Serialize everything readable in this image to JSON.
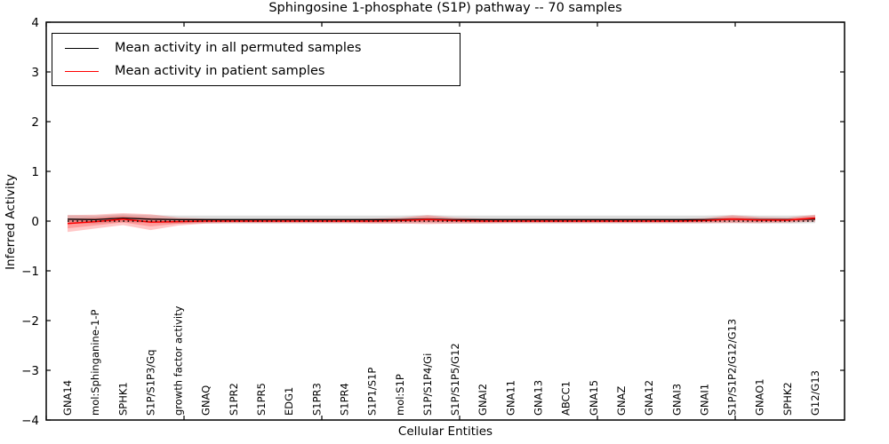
{
  "chart_data": {
    "type": "line",
    "title": "Sphingosine 1-phosphate (S1P) pathway -- 70 samples",
    "xlabel": "Cellular Entities",
    "ylabel": "Inferred Activity",
    "ylim": [
      -4,
      4
    ],
    "yticks": [
      "4",
      "3",
      "2",
      "1",
      "0",
      "−1",
      "−2",
      "−3",
      "−4"
    ],
    "ytick_values": [
      4,
      3,
      2,
      1,
      0,
      -1,
      -2,
      -3,
      -4
    ],
    "grid": false,
    "legend_position": "upper-left",
    "legend": [
      {
        "label": "Mean activity in all permuted samples",
        "color": "#000000"
      },
      {
        "label": "Mean activity in patient samples",
        "color": "#ff0000"
      }
    ],
    "categories": [
      "GNA14",
      "mol:Sphinganine-1-P",
      "SPHK1",
      "S1P/S1P3/Gq",
      "growth factor activity",
      "GNAQ",
      "S1PR2",
      "S1PR5",
      "EDG1",
      "S1PR3",
      "S1PR4",
      "S1P1/S1P",
      "mol:S1P",
      "S1P/S1P4/Gi",
      "S1P/S1P5/G12",
      "GNAI2",
      "GNA11",
      "GNA13",
      "ABCC1",
      "GNA15",
      "GNAZ",
      "GNA12",
      "GNAI3",
      "GNAI1",
      "S1P/S1P2/G12/G13",
      "GNAO1",
      "SPHK2",
      "G12/G13"
    ],
    "series": [
      {
        "name": "Mean activity in all permuted samples",
        "color": "#000000",
        "style": "solid",
        "width": 1.3,
        "values": [
          0.04,
          0.03,
          0.06,
          0.04,
          0.03,
          0.03,
          0.03,
          0.03,
          0.03,
          0.03,
          0.03,
          0.03,
          0.03,
          0.04,
          0.03,
          0.03,
          0.03,
          0.03,
          0.03,
          0.03,
          0.03,
          0.03,
          0.03,
          0.03,
          0.04,
          0.03,
          0.03,
          0.04
        ]
      },
      {
        "name": "Mean activity in patient samples",
        "color": "#ff0000",
        "style": "solid",
        "width": 1.5,
        "values": [
          -0.05,
          -0.01,
          0.04,
          -0.02,
          -0.01,
          0.0,
          0.0,
          0.0,
          0.0,
          0.0,
          0.0,
          0.0,
          0.01,
          0.03,
          0.01,
          0.0,
          0.0,
          0.0,
          0.0,
          0.0,
          0.0,
          0.0,
          0.0,
          0.01,
          0.04,
          0.02,
          0.02,
          0.06
        ]
      }
    ],
    "bands": [
      {
        "name": "permuted-std-band",
        "color": "#888888",
        "opacity": 0.28,
        "center_series": 0,
        "half_width": 0.08
      },
      {
        "name": "patient-std-band",
        "color": "#ff0000",
        "opacity": 0.22,
        "center_series": 1,
        "half_widths": [
          0.17,
          0.14,
          0.12,
          0.16,
          0.08,
          0.05,
          0.04,
          0.04,
          0.04,
          0.04,
          0.04,
          0.05,
          0.06,
          0.09,
          0.06,
          0.05,
          0.04,
          0.04,
          0.04,
          0.04,
          0.04,
          0.04,
          0.04,
          0.05,
          0.08,
          0.06,
          0.05,
          0.07
        ]
      },
      {
        "name": "patient-std-inner-band",
        "color": "#ff0000",
        "opacity": 0.22,
        "center_series": 1,
        "half_widths": [
          0.094,
          0.077,
          0.066,
          0.088,
          0.044,
          0.028,
          0.022,
          0.022,
          0.022,
          0.022,
          0.022,
          0.028,
          0.033,
          0.05,
          0.033,
          0.028,
          0.022,
          0.022,
          0.022,
          0.022,
          0.022,
          0.022,
          0.022,
          0.028,
          0.044,
          0.033,
          0.028,
          0.039
        ]
      }
    ],
    "zero_line": {
      "y": 0,
      "style": "dotted",
      "color": "#000000"
    }
  }
}
